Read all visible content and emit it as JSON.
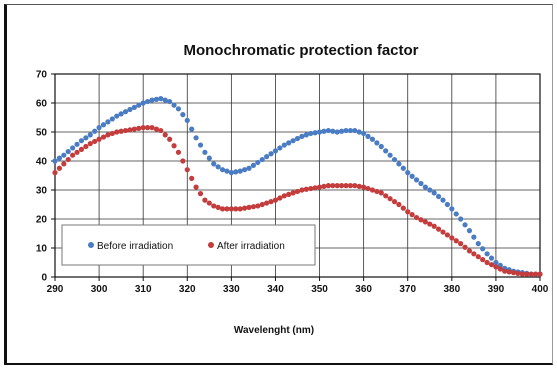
{
  "chart_data": {
    "type": "scatter",
    "title": "Monochromatic protection factor",
    "xlabel": "Wavelenght (nm)",
    "ylabel": "",
    "xlim": [
      290,
      400
    ],
    "ylim": [
      0,
      70
    ],
    "x_ticks": [
      290,
      300,
      310,
      320,
      330,
      340,
      350,
      360,
      370,
      380,
      390,
      400
    ],
    "y_ticks": [
      0,
      10,
      20,
      30,
      40,
      50,
      60,
      70
    ],
    "grid": true,
    "legend_position": "bottom-left",
    "series": [
      {
        "name": "Before irradiation",
        "color": "#4a7cc4",
        "x": [
          290,
          292,
          294,
          296,
          298,
          300,
          302,
          304,
          306,
          308,
          310,
          312,
          314,
          316,
          318,
          320,
          322,
          324,
          326,
          328,
          330,
          332,
          334,
          336,
          338,
          340,
          342,
          344,
          346,
          348,
          350,
          352,
          354,
          356,
          358,
          360,
          362,
          364,
          366,
          368,
          370,
          372,
          374,
          376,
          378,
          380,
          382,
          384,
          386,
          388,
          390,
          392,
          394,
          396,
          398,
          400
        ],
        "y": [
          40,
          42,
          44.5,
          47,
          49,
          51.5,
          53.5,
          55.5,
          57,
          58.5,
          60,
          61,
          61.5,
          60.5,
          58,
          54,
          48,
          43,
          39,
          37,
          36,
          36.5,
          37.5,
          39.5,
          41.5,
          43.5,
          45.5,
          47,
          48.5,
          49.5,
          50,
          50.5,
          50,
          50.5,
          50.5,
          49.5,
          47.5,
          45,
          42,
          39,
          36,
          33.5,
          31,
          29,
          26.5,
          23.5,
          20,
          16,
          11.5,
          8,
          5,
          3,
          2,
          1.5,
          1,
          1
        ]
      },
      {
        "name": "After irradiation",
        "color": "#c43c3c",
        "x": [
          290,
          292,
          294,
          296,
          298,
          300,
          302,
          304,
          306,
          308,
          310,
          312,
          314,
          316,
          318,
          320,
          322,
          324,
          326,
          328,
          330,
          332,
          334,
          336,
          338,
          340,
          342,
          344,
          346,
          348,
          350,
          352,
          354,
          356,
          358,
          360,
          362,
          364,
          366,
          368,
          370,
          372,
          374,
          376,
          378,
          380,
          382,
          384,
          386,
          388,
          390,
          392,
          394,
          396,
          398,
          400
        ],
        "y": [
          36,
          39,
          42,
          44,
          46,
          47.5,
          49,
          50,
          50.5,
          51,
          51.5,
          51.5,
          50.5,
          47.5,
          43,
          37,
          31,
          26.5,
          24.5,
          23.5,
          23.5,
          23.5,
          24,
          24.5,
          25.5,
          26.5,
          28,
          29,
          30,
          30.5,
          31,
          31.5,
          31.5,
          31.5,
          31.5,
          31,
          30,
          29,
          27,
          25,
          22.5,
          20.5,
          19,
          17.5,
          15.5,
          13.5,
          11.5,
          9,
          7,
          5,
          3.5,
          2,
          1.5,
          1,
          1,
          1
        ]
      }
    ]
  }
}
